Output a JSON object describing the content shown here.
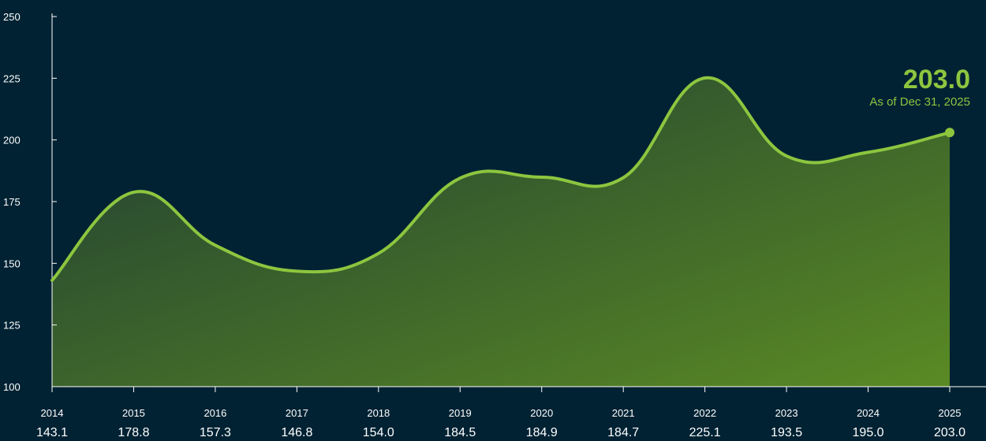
{
  "chart_data": {
    "type": "area",
    "categories": [
      "2014",
      "2015",
      "2016",
      "2017",
      "2018",
      "2019",
      "2020",
      "2021",
      "2022",
      "2023",
      "2024",
      "2025"
    ],
    "values": [
      143.1,
      178.8,
      157.3,
      146.8,
      154.0,
      184.5,
      184.9,
      184.7,
      225.1,
      193.5,
      195.0,
      203.0
    ],
    "value_labels": [
      "143.1",
      "178.8",
      "157.3",
      "146.8",
      "154.0",
      "184.5",
      "184.9",
      "184.7",
      "225.1",
      "193.5",
      "195.0",
      "203.0"
    ],
    "ylim": [
      100,
      250
    ],
    "yticks": [
      100,
      125,
      150,
      175,
      200,
      225,
      250
    ],
    "ytick_labels": [
      "100",
      "125",
      "150",
      "175",
      "200",
      "225",
      "250"
    ],
    "grid": false,
    "callout": {
      "value": "203.0",
      "subtitle": "As of Dec 31, 2025"
    },
    "colors": {
      "background": "#002233",
      "line": "#8cc63f",
      "area_top": "#1f3d33",
      "area_bottom": "#5a8a24",
      "text": "#ffffff"
    }
  }
}
